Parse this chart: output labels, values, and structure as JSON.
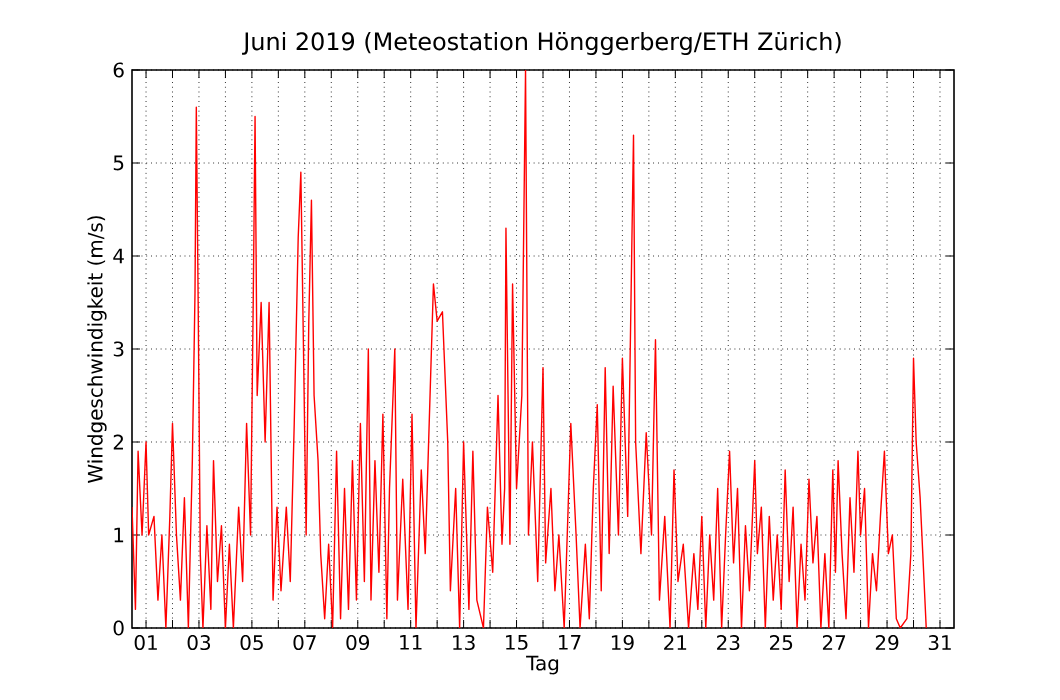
{
  "chart_data": {
    "type": "line",
    "title": "Juni 2019  (Meteostation Hönggerberg/ETH Zürich)",
    "xlabel": "Tag",
    "ylabel": "Windgeschwindigkeit (m/s)",
    "grid": true,
    "marker": "none",
    "line_style": "solid",
    "xlim": [
      0.47,
      31.53
    ],
    "ylim": [
      0,
      6
    ],
    "yticks": [
      0,
      1,
      2,
      3,
      4,
      5,
      6
    ],
    "xticks": [
      {
        "value": 1,
        "label": "01"
      },
      {
        "value": 2,
        "label": null
      },
      {
        "value": 3,
        "label": "03"
      },
      {
        "value": 4,
        "label": null
      },
      {
        "value": 5,
        "label": "05"
      },
      {
        "value": 6,
        "label": null
      },
      {
        "value": 7,
        "label": "07"
      },
      {
        "value": 8,
        "label": null
      },
      {
        "value": 9,
        "label": "09"
      },
      {
        "value": 10,
        "label": null
      },
      {
        "value": 11,
        "label": "11"
      },
      {
        "value": 12,
        "label": null
      },
      {
        "value": 13,
        "label": "13"
      },
      {
        "value": 14,
        "label": null
      },
      {
        "value": 15,
        "label": "15"
      },
      {
        "value": 16,
        "label": null
      },
      {
        "value": 17,
        "label": "17"
      },
      {
        "value": 18,
        "label": null
      },
      {
        "value": 19,
        "label": "19"
      },
      {
        "value": 20,
        "label": null
      },
      {
        "value": 21,
        "label": "21"
      },
      {
        "value": 22,
        "label": null
      },
      {
        "value": 23,
        "label": "23"
      },
      {
        "value": 24,
        "label": null
      },
      {
        "value": 25,
        "label": "25"
      },
      {
        "value": 26,
        "label": null
      },
      {
        "value": 27,
        "label": "27"
      },
      {
        "value": 28,
        "label": null
      },
      {
        "value": 29,
        "label": "29"
      },
      {
        "value": 30,
        "label": null
      },
      {
        "value": 31,
        "label": "31"
      }
    ],
    "series": [
      {
        "color": "#ff0000",
        "x": [
          0.47,
          0.6,
          0.7,
          0.85,
          1.0,
          1.1,
          1.3,
          1.45,
          1.6,
          1.75,
          1.9,
          2.0,
          2.15,
          2.3,
          2.45,
          2.6,
          2.75,
          2.85,
          2.9,
          2.97,
          3.05,
          3.15,
          3.3,
          3.45,
          3.55,
          3.7,
          3.85,
          4.0,
          4.15,
          4.3,
          4.5,
          4.65,
          4.8,
          4.95,
          5.05,
          5.12,
          5.2,
          5.35,
          5.5,
          5.65,
          5.8,
          5.95,
          6.1,
          6.3,
          6.45,
          6.6,
          6.75,
          6.85,
          6.95,
          7.05,
          7.15,
          7.25,
          7.35,
          7.5,
          7.6,
          7.75,
          7.9,
          8.05,
          8.2,
          8.35,
          8.5,
          8.65,
          8.8,
          8.95,
          9.1,
          9.25,
          9.4,
          9.5,
          9.65,
          9.8,
          9.95,
          10.1,
          10.2,
          10.4,
          10.5,
          10.7,
          10.9,
          11.05,
          11.2,
          11.4,
          11.55,
          11.86,
          12.0,
          12.2,
          12.4,
          12.5,
          12.7,
          12.85,
          13.0,
          13.2,
          13.35,
          13.5,
          13.75,
          13.9,
          14.1,
          14.3,
          14.45,
          14.55,
          14.6,
          14.75,
          14.85,
          15.0,
          15.2,
          15.34,
          15.45,
          15.6,
          15.8,
          16.0,
          16.1,
          16.3,
          16.45,
          16.6,
          16.8,
          16.95,
          17.05,
          17.25,
          17.4,
          17.6,
          17.75,
          17.9,
          18.05,
          18.2,
          18.35,
          18.5,
          18.65,
          18.85,
          19.0,
          19.2,
          19.35,
          19.42,
          19.5,
          19.7,
          19.9,
          20.1,
          20.25,
          20.4,
          20.6,
          20.8,
          20.95,
          21.1,
          21.3,
          21.5,
          21.7,
          21.85,
          22.0,
          22.15,
          22.3,
          22.45,
          22.6,
          22.75,
          22.9,
          23.05,
          23.2,
          23.35,
          23.5,
          23.65,
          23.8,
          24.0,
          24.1,
          24.25,
          24.4,
          24.55,
          24.7,
          24.85,
          25.0,
          25.15,
          25.3,
          25.45,
          25.6,
          25.75,
          25.9,
          26.05,
          26.2,
          26.35,
          26.5,
          26.65,
          26.8,
          26.95,
          27.05,
          27.15,
          27.3,
          27.45,
          27.6,
          27.75,
          27.9,
          28.0,
          28.15,
          28.3,
          28.45,
          28.6,
          28.75,
          28.9,
          29.05,
          29.2,
          29.35,
          29.5,
          29.75,
          29.9,
          30.0,
          30.1,
          30.25,
          30.35,
          30.48
        ],
        "values": [
          1.3,
          0.2,
          1.9,
          1.0,
          2.0,
          1.0,
          1.2,
          0.3,
          1.0,
          0.0,
          1.2,
          2.2,
          1.0,
          0.3,
          1.4,
          0.0,
          1.8,
          3.6,
          5.6,
          3.5,
          0.8,
          0.0,
          1.1,
          0.2,
          1.8,
          0.5,
          1.1,
          0.0,
          0.9,
          0.0,
          1.3,
          0.5,
          2.2,
          1.0,
          3.5,
          5.5,
          2.5,
          3.5,
          2.0,
          3.5,
          0.3,
          1.3,
          0.4,
          1.3,
          0.5,
          2.2,
          4.2,
          4.9,
          3.0,
          1.0,
          3.3,
          4.6,
          2.5,
          1.8,
          0.8,
          0.1,
          0.9,
          0.0,
          1.9,
          0.1,
          1.5,
          0.2,
          1.8,
          0.3,
          2.2,
          0.5,
          3.0,
          0.3,
          1.8,
          0.6,
          2.3,
          0.1,
          1.5,
          3.0,
          0.3,
          1.6,
          0.2,
          2.3,
          0.0,
          1.7,
          0.8,
          3.7,
          3.3,
          3.4,
          2.0,
          0.4,
          1.5,
          0.0,
          2.0,
          0.2,
          1.9,
          0.3,
          0.0,
          1.3,
          0.6,
          2.5,
          0.9,
          1.5,
          4.3,
          0.9,
          3.7,
          1.5,
          2.5,
          6.0,
          1.0,
          2.0,
          0.5,
          2.8,
          0.7,
          1.5,
          0.4,
          1.0,
          0.0,
          1.3,
          2.2,
          1.0,
          0.0,
          0.9,
          0.1,
          1.5,
          2.4,
          0.4,
          2.8,
          0.8,
          2.6,
          1.0,
          2.9,
          1.2,
          4.0,
          5.3,
          2.0,
          0.8,
          2.1,
          1.0,
          3.1,
          0.3,
          1.2,
          0.0,
          1.7,
          0.5,
          0.9,
          0.0,
          0.8,
          0.2,
          1.2,
          0.0,
          1.0,
          0.3,
          1.5,
          0.0,
          1.0,
          1.9,
          0.7,
          1.5,
          0.0,
          1.1,
          0.4,
          1.8,
          0.8,
          1.3,
          0.0,
          1.2,
          0.3,
          1.0,
          0.2,
          1.7,
          0.5,
          1.3,
          0.0,
          0.9,
          0.3,
          1.6,
          0.7,
          1.2,
          0.0,
          0.8,
          0.0,
          1.7,
          0.6,
          1.8,
          0.8,
          0.1,
          1.4,
          0.6,
          1.9,
          1.0,
          1.5,
          0.0,
          0.8,
          0.4,
          1.2,
          1.9,
          0.8,
          1.0,
          0.1,
          0.0,
          0.1,
          0.8,
          2.9,
          2.0,
          1.4,
          0.8,
          0.0
        ]
      }
    ]
  }
}
